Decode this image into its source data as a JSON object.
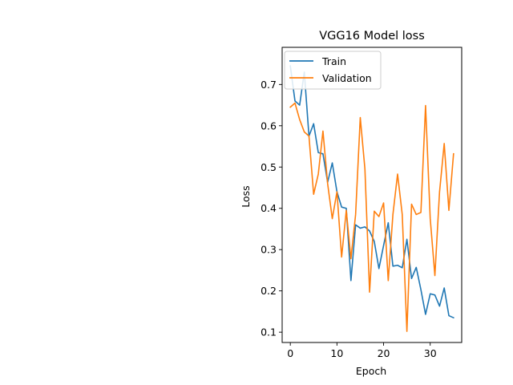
{
  "chart_data": {
    "type": "line",
    "title": "VGG16 Model loss",
    "xlabel": "Epoch",
    "ylabel": "Loss",
    "xlim": [
      -1.75,
      36.75
    ],
    "ylim": [
      0.075,
      0.79
    ],
    "x_ticks": [
      0,
      10,
      20,
      30
    ],
    "y_ticks": [
      0.1,
      0.2,
      0.3,
      0.4,
      0.5,
      0.6,
      0.7
    ],
    "grid": false,
    "legend_position": "upper-left",
    "x": [
      0,
      1,
      2,
      3,
      4,
      5,
      6,
      7,
      8,
      9,
      10,
      11,
      12,
      13,
      14,
      15,
      16,
      17,
      18,
      19,
      20,
      21,
      22,
      23,
      24,
      25,
      26,
      27,
      28,
      29,
      30,
      31,
      32,
      33,
      34,
      35
    ],
    "series": [
      {
        "name": "Train",
        "color": "#1f77b4",
        "values": [
          0.745,
          0.66,
          0.65,
          0.73,
          0.575,
          0.605,
          0.535,
          0.532,
          0.463,
          0.51,
          0.44,
          0.403,
          0.4,
          0.225,
          0.36,
          0.352,
          0.355,
          0.345,
          0.32,
          0.254,
          0.31,
          0.365,
          0.26,
          0.262,
          0.256,
          0.325,
          0.23,
          0.257,
          0.203,
          0.143,
          0.193,
          0.19,
          0.163,
          0.207,
          0.14,
          0.135
        ]
      },
      {
        "name": "Validation",
        "color": "#ff7f0e",
        "values": [
          0.645,
          0.655,
          0.615,
          0.585,
          0.575,
          0.434,
          0.483,
          0.587,
          0.46,
          0.375,
          0.44,
          0.282,
          0.395,
          0.278,
          0.385,
          0.62,
          0.495,
          0.197,
          0.393,
          0.38,
          0.413,
          0.225,
          0.385,
          0.483,
          0.385,
          0.102,
          0.41,
          0.385,
          0.39,
          0.649,
          0.375,
          0.237,
          0.44,
          0.557,
          0.395,
          0.532
        ]
      }
    ]
  }
}
